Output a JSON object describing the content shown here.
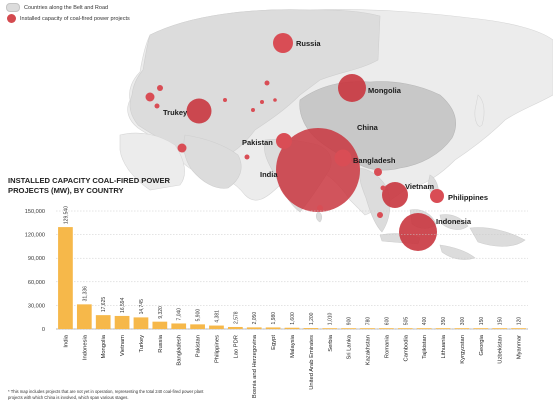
{
  "legend": {
    "region_label": "Countries along the Belt and Road",
    "bubble_label": "Installed capacity of coal-fired power projects"
  },
  "map_labels": [
    {
      "text": "Russia"
    },
    {
      "text": "Mongolia"
    },
    {
      "text": "Trukey"
    },
    {
      "text": "China"
    },
    {
      "text": "Pakistan"
    },
    {
      "text": "Bangladesh"
    },
    {
      "text": "India"
    },
    {
      "text": "Vietnam"
    },
    {
      "text": "Philippines"
    },
    {
      "text": "Indonesia"
    }
  ],
  "colors": {
    "bubble": "#c9363f",
    "bubble_small": "#d94d55",
    "bar": "#f6b84a",
    "region_highlight": "#dcdcdc",
    "land": "#ececec",
    "china": "#c8c8c8"
  },
  "chart_data": {
    "type": "bar",
    "title": "INSTALLED CAPACITY COAL-FIRED POWER PROJECTS (MW), BY COUNTRY",
    "ylim": [
      0,
      150000
    ],
    "yticks": [
      "150,000",
      "120,000",
      "90,000",
      "60,000",
      "30,000",
      "0"
    ],
    "categories": [
      "India",
      "Indonesia",
      "Mongolia",
      "Vietnam",
      "Turkey",
      "Russia",
      "Bangladesh",
      "Pakistan",
      "Philippines",
      "Lao PDR",
      "Bosnia and Herzegovina",
      "Egypt",
      "Malaysia",
      "United Arab Emirates",
      "Serbia",
      "Sri Lanka",
      "Kazakhstan",
      "Romania",
      "Cambodia",
      "Tajikistan",
      "Lithuania",
      "Kyrgyzstan",
      "Georgia",
      "Uzbekistan",
      "Myanmar"
    ],
    "values": [
      129540,
      31336,
      17625,
      16594,
      14745,
      9320,
      7040,
      5900,
      4381,
      2578,
      2050,
      1980,
      1600,
      1200,
      1010,
      900,
      780,
      600,
      505,
      400,
      350,
      300,
      150,
      150,
      120
    ],
    "value_labels": [
      "129,540",
      "31,336",
      "17,625",
      "16,594",
      "14,745",
      "9,320",
      "7,040",
      "5,900",
      "4,381",
      "2,578",
      "2,050",
      "1,980",
      "1,600",
      "1,200",
      "1,010",
      "900",
      "780",
      "600",
      "505",
      "400",
      "350",
      "300",
      "150",
      "150",
      "120"
    ]
  },
  "footnote": "* This map includes projects that are not yet in operation, representing the total 240 coal-fired power plant projects with which China is involved, which span various stages."
}
